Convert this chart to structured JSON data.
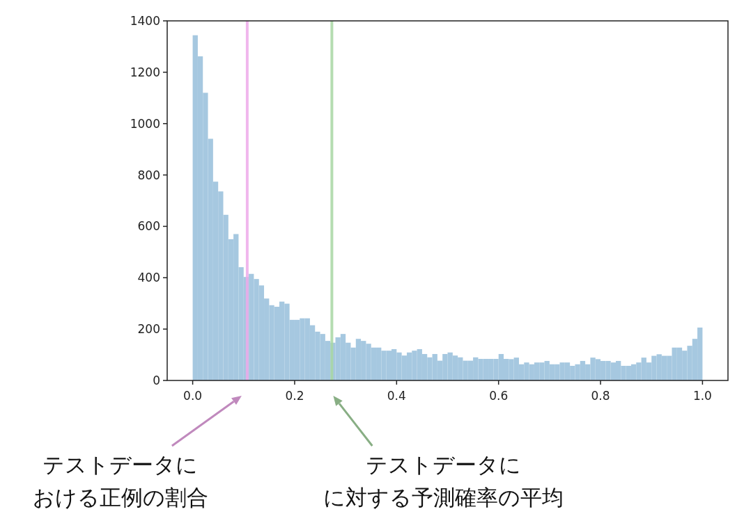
{
  "chart_data": {
    "type": "histogram",
    "bins": [
      0,
      0.01,
      0.02,
      0.03,
      0.04,
      0.05,
      0.06,
      0.07,
      0.08,
      0.09,
      0.1,
      0.11,
      0.12,
      0.13,
      0.14,
      0.15,
      0.16,
      0.17,
      0.18,
      0.19,
      0.2,
      0.21,
      0.22,
      0.23,
      0.24,
      0.25,
      0.26,
      0.27,
      0.28,
      0.29,
      0.3,
      0.31,
      0.32,
      0.33,
      0.34,
      0.35,
      0.36,
      0.37,
      0.38,
      0.39,
      0.4,
      0.41,
      0.42,
      0.43,
      0.44,
      0.45,
      0.46,
      0.47,
      0.48,
      0.49,
      0.5,
      0.51,
      0.52,
      0.53,
      0.54,
      0.55,
      0.56,
      0.57,
      0.58,
      0.59,
      0.6,
      0.61,
      0.62,
      0.63,
      0.64,
      0.65,
      0.66,
      0.67,
      0.68,
      0.69,
      0.7,
      0.71,
      0.72,
      0.73,
      0.74,
      0.75,
      0.76,
      0.77,
      0.78,
      0.79,
      0.8,
      0.81,
      0.82,
      0.83,
      0.84,
      0.85,
      0.86,
      0.87,
      0.88,
      0.89,
      0.9,
      0.91,
      0.92,
      0.93,
      0.94,
      0.95,
      0.96,
      0.97,
      0.98,
      0.99,
      1
    ],
    "values": [
      1344,
      1262,
      1120,
      941,
      774,
      736,
      645,
      550,
      570,
      441,
      403,
      415,
      395,
      370,
      319,
      293,
      287,
      307,
      299,
      236,
      236,
      242,
      242,
      215,
      190,
      181,
      154,
      147,
      168,
      181,
      147,
      128,
      162,
      154,
      143,
      128,
      128,
      116,
      116,
      122,
      109,
      97,
      109,
      116,
      122,
      103,
      90,
      103,
      77,
      103,
      109,
      97,
      90,
      77,
      77,
      90,
      84,
      84,
      84,
      84,
      103,
      84,
      83,
      89,
      63,
      70,
      63,
      70,
      70,
      76,
      63,
      63,
      70,
      70,
      57,
      63,
      76,
      63,
      89,
      83,
      76,
      76,
      70,
      76,
      57,
      57,
      63,
      70,
      89,
      70,
      96,
      102,
      96,
      96,
      128,
      128,
      116,
      135,
      162,
      206
    ],
    "color": "#a6c8e0",
    "xlim": [
      -0.05,
      1.05
    ],
    "xticks": [
      {
        "value": 0,
        "label": "0.0"
      },
      0.2,
      0.4,
      0.6,
      0.8,
      {
        "value": 1,
        "label": "1.0"
      }
    ],
    "ylim": [
      0,
      1400
    ],
    "yticks": [
      0,
      200,
      400,
      600,
      800,
      1000,
      1200,
      1400
    ],
    "grid": false,
    "annotations": [
      "テストデータにおける正例の割合",
      "テストデータにに対する予測確率の平均"
    ],
    "ref_lines": [
      {
        "axis": "x",
        "value": 0.107,
        "color": "#eeaaea"
      },
      {
        "axis": "x",
        "value": 0.273,
        "color": "#a9d8a4"
      }
    ]
  }
}
